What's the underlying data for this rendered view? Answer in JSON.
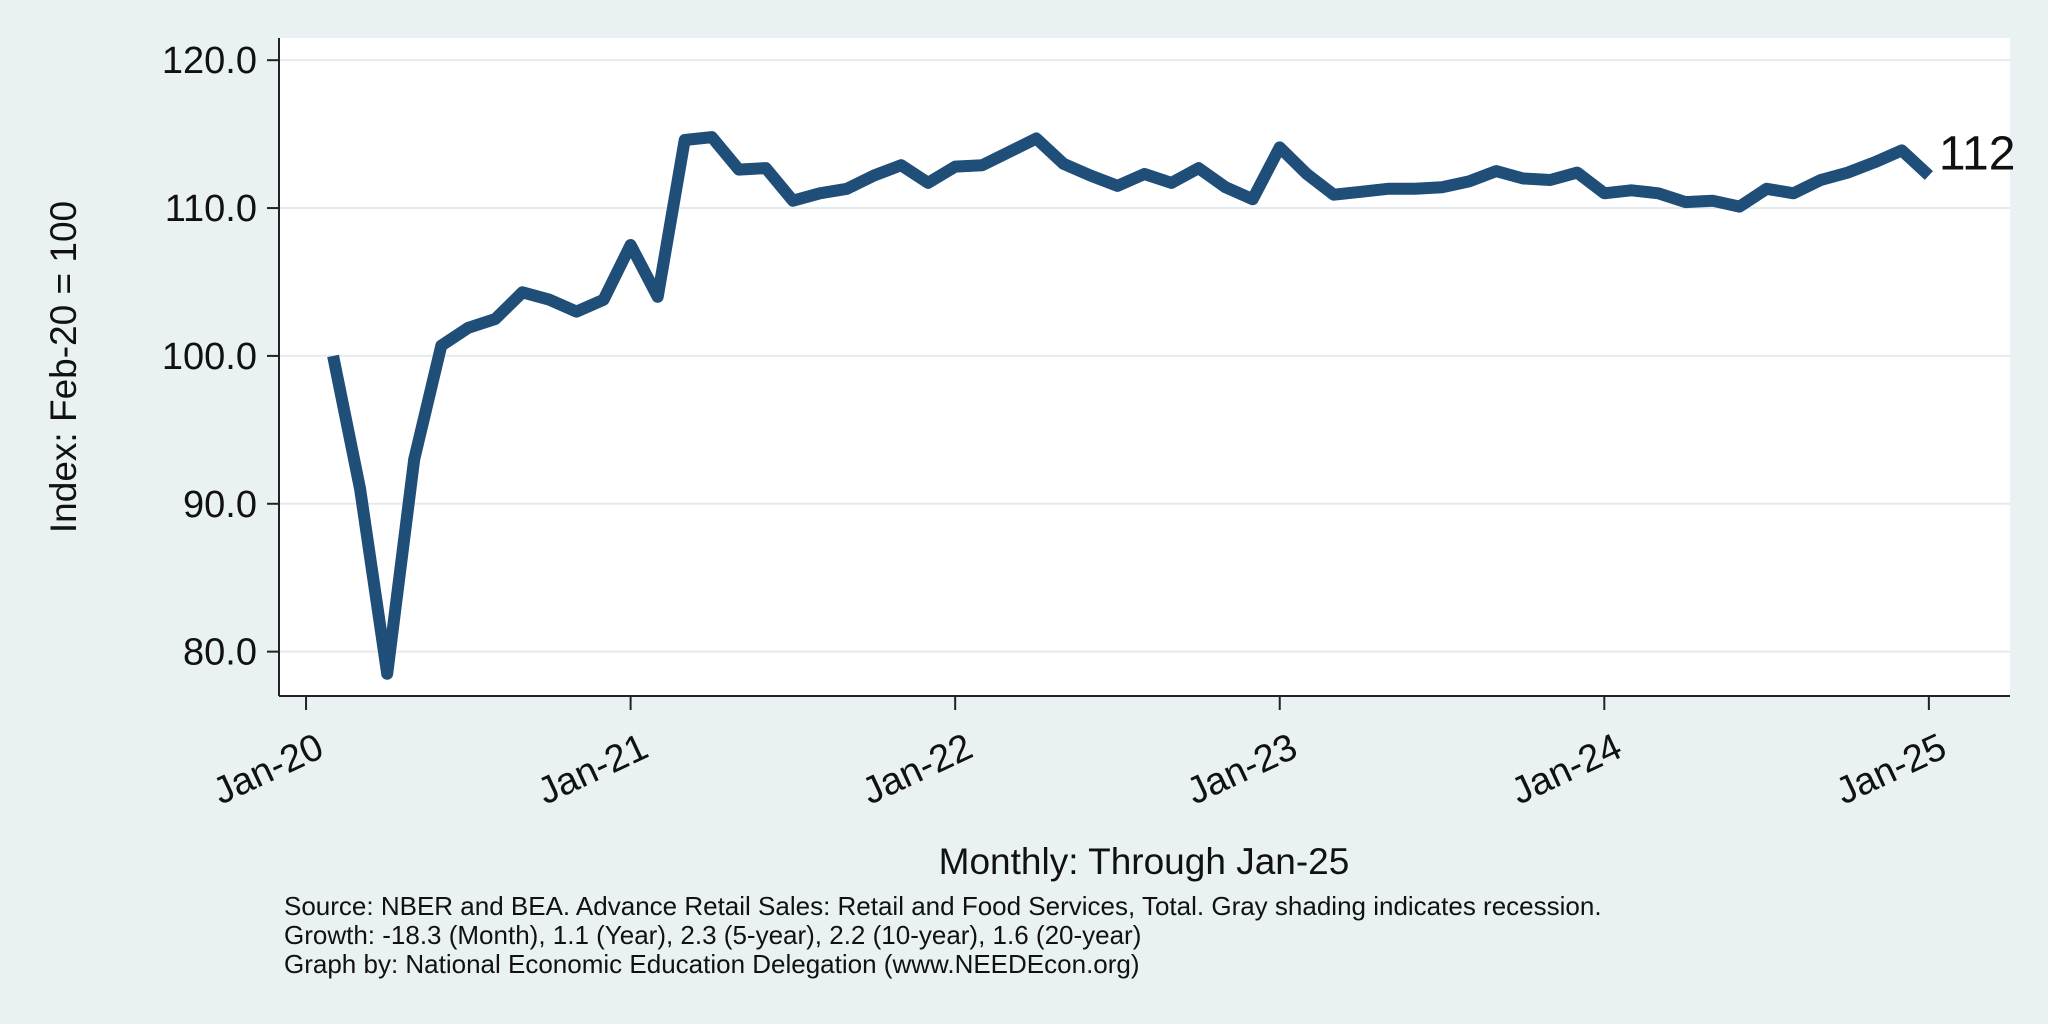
{
  "chart_data": {
    "type": "line",
    "ylabel": "Index: Feb-20 = 100",
    "xlabel": "Monthly: Through Jan-25",
    "x_tick_labels": [
      "Jan-20",
      "Jan-21",
      "Jan-22",
      "Jan-23",
      "Jan-24",
      "Jan-25"
    ],
    "y_tick_labels": [
      "80.0",
      "90.0",
      "100.0",
      "110.0",
      "120.0"
    ],
    "ylim": [
      77,
      121.5
    ],
    "xlim": [
      "2019-12",
      "2025-04"
    ],
    "grid": "horizontal",
    "end_label": "112",
    "series": [
      {
        "color": "#1f4e79",
        "x": [
          "2020-02",
          "2020-03",
          "2020-04",
          "2020-05",
          "2020-06",
          "2020-07",
          "2020-08",
          "2020-09",
          "2020-10",
          "2020-11",
          "2020-12",
          "2021-01",
          "2021-02",
          "2021-03",
          "2021-04",
          "2021-05",
          "2021-06",
          "2021-07",
          "2021-08",
          "2021-09",
          "2021-10",
          "2021-11",
          "2021-12",
          "2022-01",
          "2022-02",
          "2022-03",
          "2022-04",
          "2022-05",
          "2022-06",
          "2022-07",
          "2022-08",
          "2022-09",
          "2022-10",
          "2022-11",
          "2022-12",
          "2023-01",
          "2023-02",
          "2023-03",
          "2023-04",
          "2023-05",
          "2023-06",
          "2023-07",
          "2023-08",
          "2023-09",
          "2023-10",
          "2023-11",
          "2023-12",
          "2024-01",
          "2024-02",
          "2024-03",
          "2024-04",
          "2024-05",
          "2024-06",
          "2024-07",
          "2024-08",
          "2024-09",
          "2024-10",
          "2024-11",
          "2024-12",
          "2025-01"
        ],
        "values": [
          100.0,
          91.0,
          78.5,
          93.0,
          100.7,
          101.9,
          102.5,
          104.3,
          103.8,
          103.0,
          103.8,
          107.5,
          104.0,
          114.6,
          114.8,
          112.6,
          112.7,
          110.5,
          111.0,
          111.3,
          112.2,
          112.9,
          111.7,
          112.8,
          112.9,
          113.8,
          114.7,
          113.0,
          112.2,
          111.5,
          112.3,
          111.7,
          112.7,
          111.4,
          110.6,
          114.1,
          112.3,
          110.9,
          111.1,
          111.3,
          111.3,
          111.4,
          111.8,
          112.5,
          112.0,
          111.9,
          112.4,
          111.0,
          111.2,
          111.0,
          110.4,
          110.5,
          110.1,
          111.3,
          111.0,
          111.9,
          112.4,
          113.1,
          113.9,
          112.2
        ]
      }
    ]
  },
  "notes": {
    "source": "Source: NBER and BEA. Advance Retail Sales: Retail and Food Services, Total. Gray shading indicates recession.",
    "growth": "Growth: -18.3 (Month), 1.1 (Year), 2.3 (5-year), 2.2 (10-year), 1.6 (20-year)",
    "graph_by": "Graph by: National Economic Education Delegation (www.NEEDEcon.org)"
  }
}
